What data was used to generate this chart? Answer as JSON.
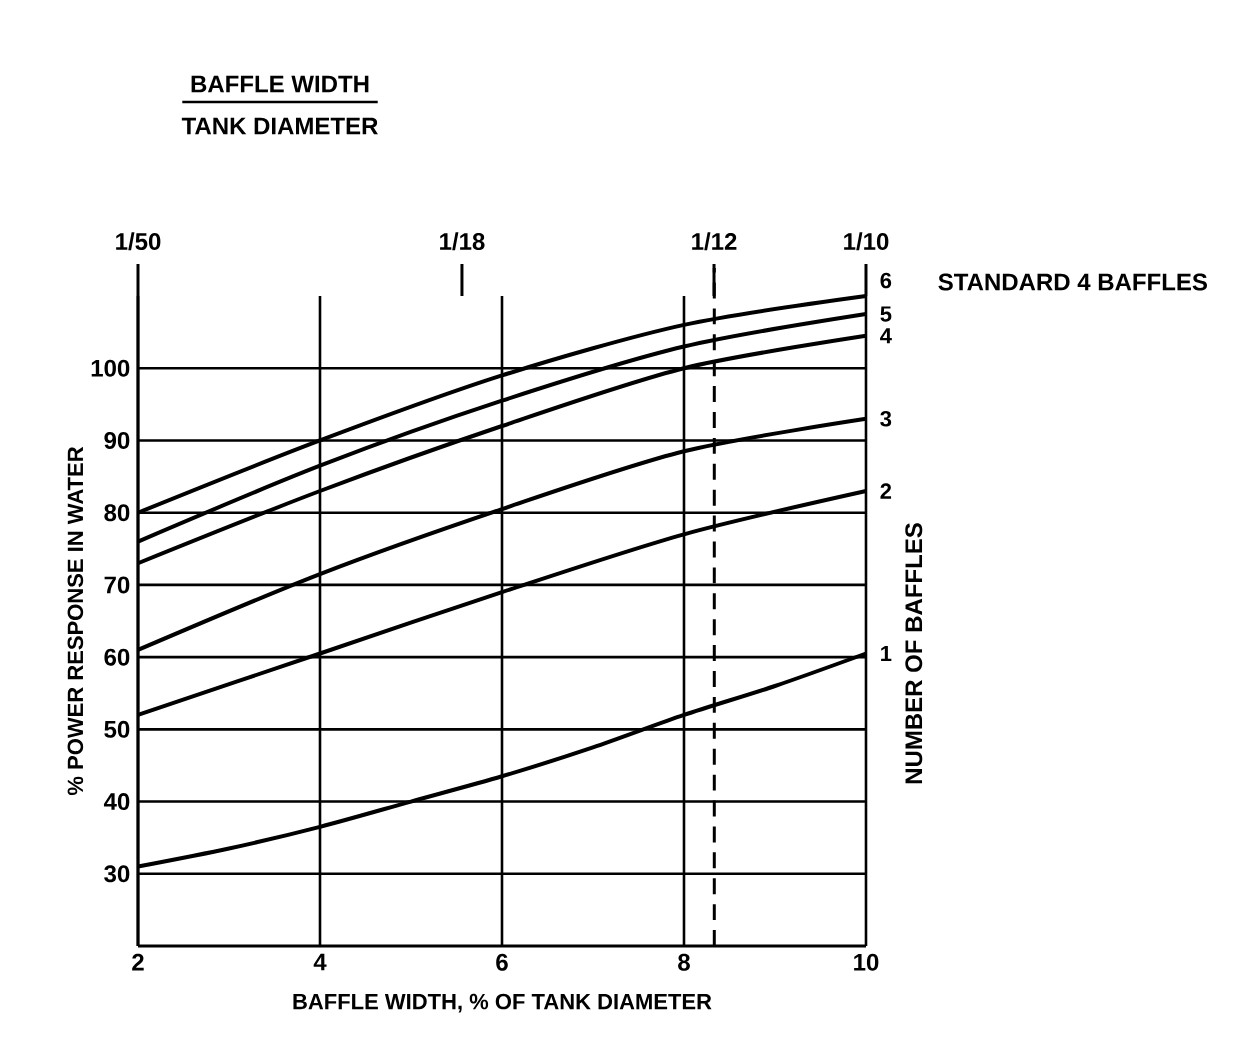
{
  "chart_data": {
    "type": "line",
    "title": "BAFFLE WIDTH",
    "subtitle": "TANK DIAMETER",
    "xlabel": "BAFFLE WIDTH, % OF TANK DIAMETER",
    "ylabel": "% POWER RESPONSE IN WATER",
    "y2label": "NUMBER OF BAFFLES",
    "annotations": [
      "STANDARD 4 BAFFLES"
    ],
    "x": [
      2,
      4,
      6,
      8,
      10
    ],
    "series": [
      {
        "name": "1",
        "color": "#000000",
        "x": [
          2,
          3,
          4,
          5,
          6,
          7,
          8,
          9,
          10
        ],
        "values": [
          31,
          33.5,
          36.5,
          40,
          43.5,
          47.5,
          52,
          56,
          60.5
        ]
      },
      {
        "name": "2",
        "color": "#000000",
        "values": [
          52,
          60.5,
          69,
          77,
          83
        ]
      },
      {
        "name": "3",
        "color": "#000000",
        "values": [
          61,
          71.5,
          80.5,
          88.5,
          93
        ]
      },
      {
        "name": "4",
        "color": "#000000",
        "values": [
          73,
          83,
          92,
          100,
          104.5
        ]
      },
      {
        "name": "5",
        "color": "#000000",
        "values": [
          76,
          86.5,
          95.5,
          103,
          107.5
        ]
      },
      {
        "name": "6",
        "color": "#000000",
        "values": [
          80,
          90,
          99,
          106,
          110
        ]
      }
    ],
    "xlim": [
      2,
      10
    ],
    "ylim": [
      20,
      110
    ],
    "xticks": [
      2,
      4,
      6,
      8,
      10
    ],
    "yticks": [
      30,
      40,
      50,
      60,
      70,
      80,
      90,
      100
    ],
    "x2lim": [
      0.02,
      0.1
    ],
    "x2ticks": [
      {
        "value": 0.02,
        "label": "1/50"
      },
      {
        "value": 0.0556,
        "label": "1/18"
      },
      {
        "value": 0.0833,
        "label": "1/12"
      },
      {
        "value": 0.1,
        "label": "1/10"
      }
    ],
    "ref_lines": [
      {
        "axis": "x",
        "value": 8.333,
        "label": null,
        "line_style": "dashed",
        "color": "#000000"
      }
    ],
    "grid": true,
    "legend": "right",
    "marker": "none",
    "line_style": "solid"
  }
}
